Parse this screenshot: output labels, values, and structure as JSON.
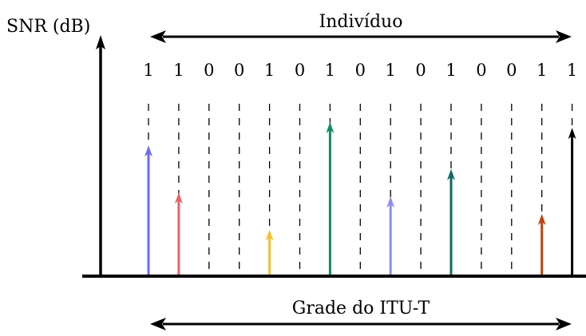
{
  "y_axis_label": "SNR (dB)",
  "top_label": "Indivíduo",
  "bottom_label": "Grade do ITU-T",
  "bits": [
    "1",
    "1",
    "0",
    "0",
    "1",
    "0",
    "1",
    "0",
    "1",
    "0",
    "1",
    "0",
    "0",
    "1",
    "1"
  ],
  "channels": [
    {
      "bit": 1,
      "level": 0.66,
      "color": "#6b6bef"
    },
    {
      "bit": 1,
      "level": 0.42,
      "color": "#e8636a"
    },
    {
      "bit": 0
    },
    {
      "bit": 0
    },
    {
      "bit": 1,
      "level": 0.23,
      "color": "#f3c232"
    },
    {
      "bit": 0
    },
    {
      "bit": 1,
      "level": 0.78,
      "color": "#0e8f5f"
    },
    {
      "bit": 0
    },
    {
      "bit": 1,
      "level": 0.4,
      "color": "#8e8ef3"
    },
    {
      "bit": 0
    },
    {
      "bit": 1,
      "level": 0.54,
      "color": "#0f6a63"
    },
    {
      "bit": 0
    },
    {
      "bit": 0
    },
    {
      "bit": 1,
      "level": 0.31,
      "color": "#c2410c"
    },
    {
      "bit": 1,
      "level": 0.75,
      "color": "#000000"
    }
  ]
}
